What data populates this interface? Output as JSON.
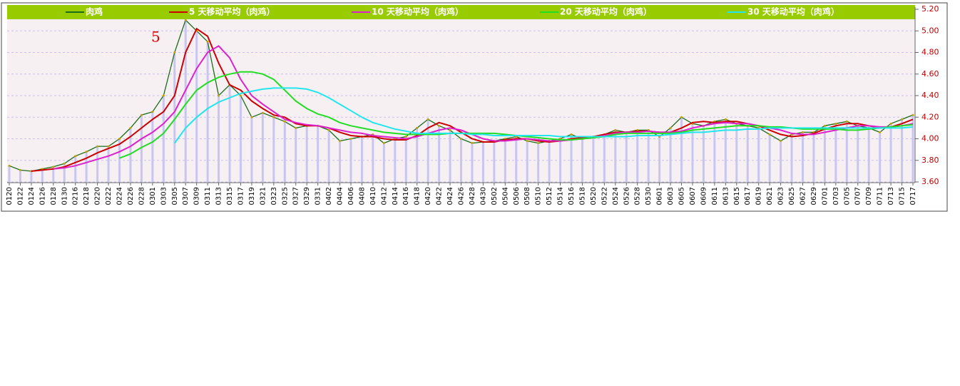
{
  "chart_data": {
    "type": "line",
    "annotation": "5",
    "categories": [
      "0120",
      "0122",
      "0124",
      "0126",
      "0128",
      "0130",
      "0216",
      "0218",
      "0220",
      "0222",
      "0224",
      "0226",
      "0228",
      "0301",
      "0303",
      "0305",
      "0307",
      "0309",
      "0311",
      "0313",
      "0315",
      "0317",
      "0319",
      "0321",
      "0323",
      "0325",
      "0327",
      "0329",
      "0331",
      "0402",
      "0404",
      "0406",
      "0408",
      "0410",
      "0412",
      "0414",
      "0416",
      "0418",
      "0420",
      "0422",
      "0424",
      "0426",
      "0428",
      "0430",
      "0502",
      "0504",
      "0506",
      "0508",
      "0510",
      "0512",
      "0514",
      "0516",
      "0518",
      "0520",
      "0522",
      "0524",
      "0526",
      "0528",
      "0530",
      "0601",
      "0603",
      "0605",
      "0607",
      "0609",
      "0611",
      "0613",
      "0615",
      "0617",
      "0619",
      "0621",
      "0623",
      "0625",
      "0627",
      "0629",
      "0701",
      "0703",
      "0705",
      "0707",
      "0709",
      "0711",
      "0713",
      "0715",
      "0717"
    ],
    "series": [
      {
        "name": "肉鸡",
        "color": "#1a6b1a",
        "bar_color": "#c9c5f2",
        "values": [
          3.75,
          3.71,
          3.7,
          3.72,
          3.74,
          3.77,
          3.84,
          3.88,
          3.93,
          3.93,
          4.0,
          4.1,
          4.22,
          4.25,
          4.4,
          4.8,
          5.1,
          5.0,
          4.9,
          4.4,
          4.5,
          4.4,
          4.2,
          4.24,
          4.2,
          4.16,
          4.1,
          4.12,
          4.12,
          4.08,
          3.98,
          4.0,
          4.02,
          4.04,
          3.96,
          4.0,
          4.02,
          4.1,
          4.18,
          4.12,
          4.08,
          4.0,
          3.96,
          3.97,
          3.98,
          4.0,
          4.02,
          3.98,
          3.96,
          3.98,
          4.0,
          4.04,
          4.0,
          4.02,
          4.04,
          4.08,
          4.06,
          4.08,
          4.08,
          4.02,
          4.1,
          4.2,
          4.14,
          4.12,
          4.16,
          4.18,
          4.14,
          4.12,
          4.1,
          4.04,
          3.98,
          4.04,
          4.06,
          4.06,
          4.12,
          4.14,
          4.16,
          4.12,
          4.1,
          4.06,
          4.14,
          4.18,
          4.22
        ]
      },
      {
        "name": "5 天移动平均（肉鸡）",
        "color": "#cc0000",
        "values": [
          null,
          null,
          3.7,
          3.71,
          3.72,
          3.74,
          3.78,
          3.82,
          3.87,
          3.91,
          3.95,
          4.02,
          4.1,
          4.18,
          4.25,
          4.4,
          4.8,
          5.02,
          4.95,
          4.7,
          4.5,
          4.45,
          4.35,
          4.28,
          4.22,
          4.2,
          4.14,
          4.12,
          4.12,
          4.1,
          4.06,
          4.03,
          4.02,
          4.02,
          4.0,
          3.99,
          3.99,
          4.03,
          4.1,
          4.15,
          4.12,
          4.06,
          4.0,
          3.97,
          3.97,
          3.99,
          4.0,
          4.0,
          3.98,
          3.97,
          3.98,
          4.0,
          4.01,
          4.02,
          4.04,
          4.06,
          4.06,
          4.07,
          4.07,
          4.06,
          4.06,
          4.1,
          4.15,
          4.16,
          4.15,
          4.16,
          4.16,
          4.14,
          4.12,
          4.08,
          4.04,
          4.02,
          4.03,
          4.05,
          4.09,
          4.12,
          4.14,
          4.14,
          4.12,
          4.1,
          4.11,
          4.14,
          4.18
        ]
      },
      {
        "name": "10 天移动平均（肉鸡）",
        "color": "#dd22cc",
        "values": [
          null,
          null,
          null,
          null,
          3.72,
          3.73,
          3.75,
          3.78,
          3.81,
          3.84,
          3.88,
          3.93,
          4.0,
          4.06,
          4.14,
          4.25,
          4.45,
          4.65,
          4.8,
          4.86,
          4.75,
          4.55,
          4.4,
          4.32,
          4.25,
          4.18,
          4.15,
          4.13,
          4.12,
          4.1,
          4.08,
          4.06,
          4.05,
          4.03,
          4.02,
          4.01,
          4.0,
          4.02,
          4.05,
          4.08,
          4.1,
          4.08,
          4.04,
          4.0,
          3.98,
          3.98,
          3.99,
          4.0,
          3.99,
          3.98,
          3.98,
          3.99,
          4.0,
          4.01,
          4.03,
          4.05,
          4.06,
          4.06,
          4.07,
          4.06,
          4.06,
          4.07,
          4.1,
          4.12,
          4.14,
          4.15,
          4.14,
          4.14,
          4.12,
          4.1,
          4.08,
          4.05,
          4.04,
          4.04,
          4.06,
          4.08,
          4.1,
          4.12,
          4.12,
          4.11,
          4.11,
          4.12,
          4.14
        ]
      },
      {
        "name": "20 天移动平均（肉鸡）",
        "color": "#22dd22",
        "values": [
          null,
          null,
          null,
          null,
          null,
          null,
          null,
          null,
          null,
          null,
          3.82,
          3.86,
          3.92,
          3.97,
          4.05,
          4.18,
          4.32,
          4.45,
          4.52,
          4.57,
          4.6,
          4.62,
          4.62,
          4.6,
          4.55,
          4.45,
          4.35,
          4.28,
          4.23,
          4.2,
          4.15,
          4.12,
          4.1,
          4.08,
          4.06,
          4.05,
          4.04,
          4.04,
          4.04,
          4.04,
          4.05,
          4.05,
          4.05,
          4.05,
          4.05,
          4.04,
          4.03,
          4.02,
          4.01,
          4.0,
          3.99,
          3.99,
          4.0,
          4.01,
          4.02,
          4.04,
          4.05,
          4.05,
          4.05,
          4.05,
          4.05,
          4.06,
          4.08,
          4.09,
          4.1,
          4.11,
          4.12,
          4.12,
          4.12,
          4.11,
          4.11,
          4.1,
          4.09,
          4.09,
          4.09,
          4.09,
          4.08,
          4.08,
          4.09,
          4.1,
          4.11,
          4.12,
          4.13
        ]
      },
      {
        "name": "30 天移动平均（肉鸡）",
        "color": "#22e5ee",
        "values": [
          null,
          null,
          null,
          null,
          null,
          null,
          null,
          null,
          null,
          null,
          null,
          null,
          null,
          null,
          null,
          3.96,
          4.1,
          4.2,
          4.28,
          4.34,
          4.38,
          4.42,
          4.44,
          4.46,
          4.47,
          4.47,
          4.47,
          4.46,
          4.43,
          4.38,
          4.32,
          4.26,
          4.2,
          4.15,
          4.12,
          4.09,
          4.07,
          4.05,
          4.05,
          4.05,
          4.05,
          4.05,
          4.04,
          4.04,
          4.03,
          4.03,
          4.03,
          4.03,
          4.03,
          4.03,
          4.02,
          4.02,
          4.02,
          4.02,
          4.02,
          4.02,
          4.02,
          4.03,
          4.03,
          4.03,
          4.04,
          4.05,
          4.06,
          4.06,
          4.07,
          4.08,
          4.08,
          4.09,
          4.09,
          4.1,
          4.1,
          4.1,
          4.1,
          4.1,
          4.1,
          4.1,
          4.1,
          4.1,
          4.1,
          4.1,
          4.1,
          4.1,
          4.11
        ]
      }
    ],
    "ylim": [
      3.6,
      5.2
    ],
    "yticks": [
      {
        "value": 3.6,
        "label": "3.60"
      },
      {
        "value": 3.8,
        "label": "3.80"
      },
      {
        "value": 4.0,
        "label": "4.00"
      },
      {
        "value": 4.2,
        "label": "4.20"
      },
      {
        "value": 4.4,
        "label": "4.40"
      },
      {
        "value": 4.6,
        "label": "4.60"
      },
      {
        "value": 4.8,
        "label": "4.80"
      },
      {
        "value": 5.0,
        "label": "5.00"
      },
      {
        "value": 5.2,
        "label": "5.20"
      }
    ],
    "grid": true,
    "legend_color": "#99cc00"
  }
}
